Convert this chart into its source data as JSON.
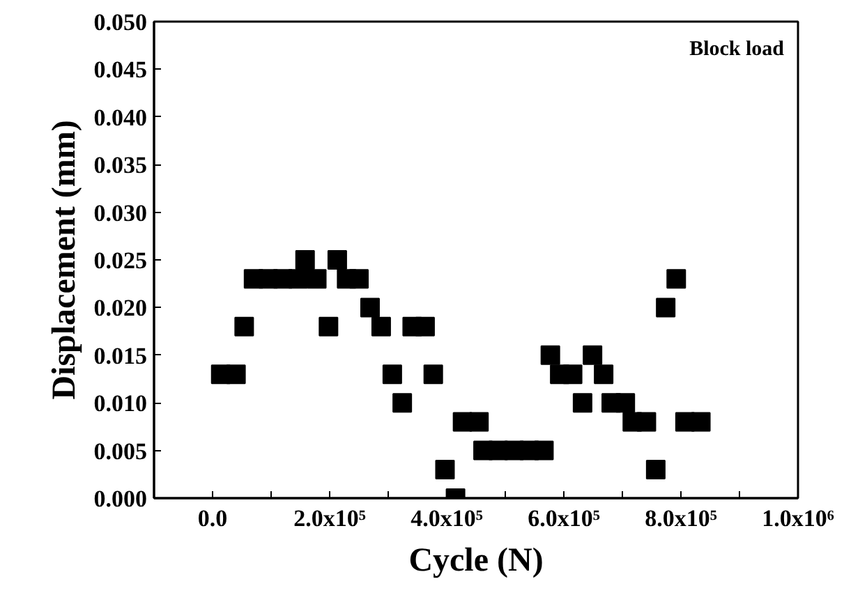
{
  "chart_data": {
    "type": "scatter",
    "xlabel": "Cycle (N)",
    "ylabel": "Displacement (mm)",
    "annotations": [
      "Block load"
    ],
    "x": [
      14000,
      40000,
      54000,
      70000,
      95000,
      120000,
      146000,
      158000,
      178000,
      198000,
      213000,
      229000,
      250000,
      269000,
      288000,
      307000,
      324000,
      341000,
      363000,
      377000,
      397000,
      415000,
      427000,
      455000,
      462000,
      488000,
      515000,
      541000,
      566000,
      577000,
      593000,
      615000,
      632000,
      649000,
      668000,
      681000,
      705000,
      717000,
      741000,
      757000,
      774000,
      792000,
      807000,
      834000
    ],
    "series": [
      {
        "color": "#000000",
        "values": [
          0.013,
          0.013,
          0.018,
          0.023,
          0.023,
          0.023,
          0.023,
          0.025,
          0.023,
          0.018,
          0.025,
          0.023,
          0.023,
          0.02,
          0.018,
          0.013,
          0.01,
          0.018,
          0.018,
          0.013,
          0.003,
          0.0,
          0.008,
          0.008,
          0.005,
          0.005,
          0.005,
          0.005,
          0.005,
          0.015,
          0.013,
          0.013,
          0.01,
          0.015,
          0.013,
          0.01,
          0.01,
          0.008,
          0.008,
          0.003,
          0.02,
          0.023,
          0.008,
          0.008
        ]
      }
    ],
    "marker": "square",
    "grid": false,
    "xlim": [
      -100000,
      1000000
    ],
    "xticks": [
      {
        "value": 0,
        "label": "0.0"
      },
      {
        "value": 100000,
        "label": null
      },
      {
        "value": 200000,
        "label": "2.0x10⁵"
      },
      {
        "value": 300000,
        "label": null
      },
      {
        "value": 400000,
        "label": "4.0x10⁵"
      },
      {
        "value": 500000,
        "label": null
      },
      {
        "value": 600000,
        "label": "6.0x10⁵"
      },
      {
        "value": 700000,
        "label": null
      },
      {
        "value": 800000,
        "label": "8.0x10⁵"
      },
      {
        "value": 900000,
        "label": null
      },
      {
        "value": 1000000,
        "label": "1.0x10⁶"
      }
    ],
    "ylim": [
      0,
      0.05
    ],
    "yticks": [
      {
        "value": 0,
        "label": "0.000"
      },
      {
        "value": 0.005,
        "label": "0.005"
      },
      {
        "value": 0.01,
        "label": "0.010"
      },
      {
        "value": 0.015,
        "label": "0.015"
      },
      {
        "value": 0.02,
        "label": "0.020"
      },
      {
        "value": 0.025,
        "label": "0.025"
      },
      {
        "value": 0.03,
        "label": "0.030"
      },
      {
        "value": 0.035,
        "label": "0.035"
      },
      {
        "value": 0.04,
        "label": "0.040"
      },
      {
        "value": 0.045,
        "label": "0.045"
      },
      {
        "value": 0.05,
        "label": "0.050"
      }
    ]
  }
}
